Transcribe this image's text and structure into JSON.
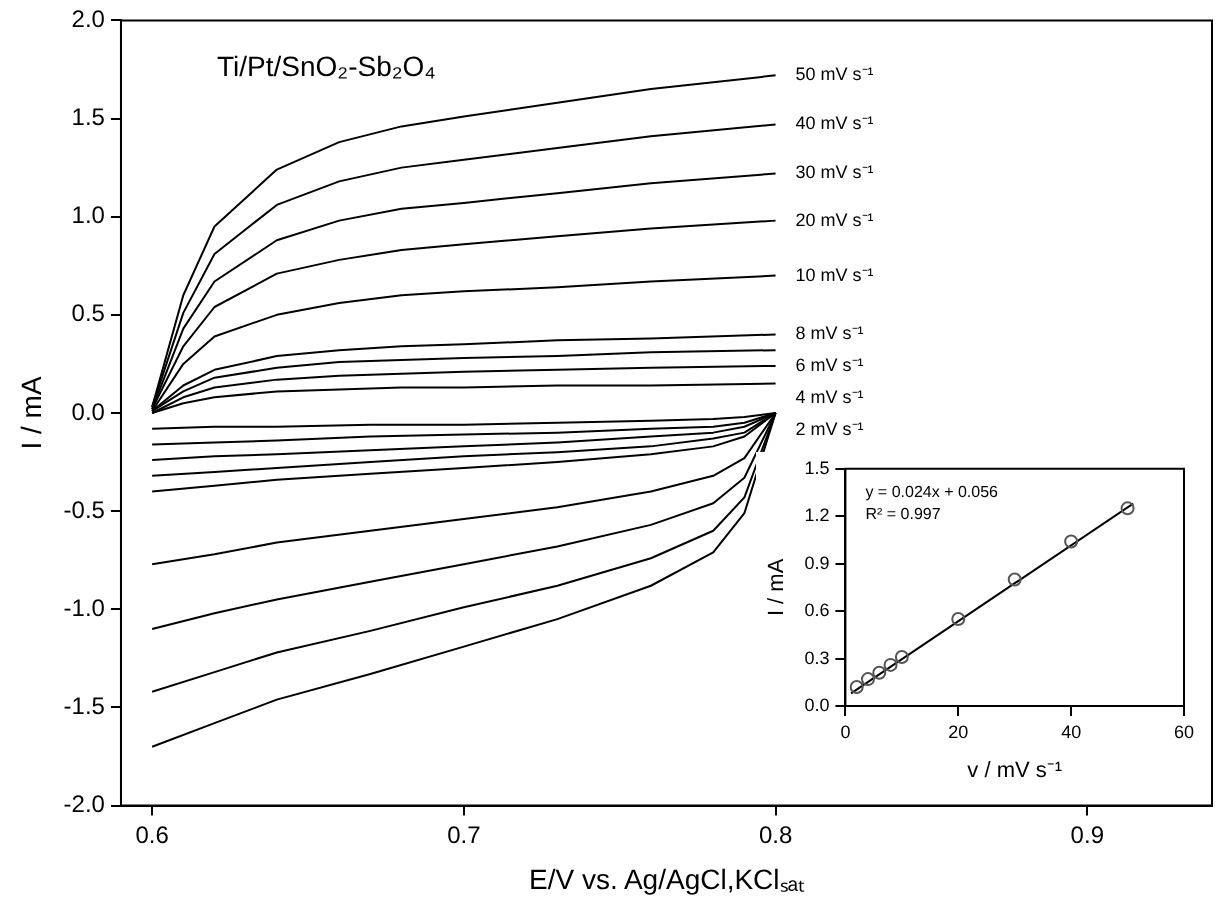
{
  "chart_data": [
    {
      "type": "line",
      "title": "Ti/Pt/SnO₂-Sb₂O₄",
      "xlabel": "E/V vs. Ag/AgCl,KClₛₐₜ",
      "ylabel": "I / mA",
      "xlim": [
        0.59,
        0.94
      ],
      "xticks": [
        0.6,
        0.7,
        0.8,
        0.9
      ],
      "ylim": [
        -2,
        2
      ],
      "yticks": [
        {
          "value": -2,
          "label": "-2.0"
        },
        -1.5,
        {
          "value": -1,
          "label": "-1.0"
        },
        -0.5,
        {
          "value": 0,
          "label": "0.0"
        },
        0.5,
        {
          "value": 1,
          "label": "1.0"
        },
        1.5,
        {
          "value": 2,
          "label": "2.0"
        }
      ],
      "grid": false,
      "legend": false,
      "marker": "none",
      "series": [
        {
          "name": "50 mV s⁻¹",
          "color": "#000000",
          "x": [
            0.6,
            0.61,
            0.62,
            0.64,
            0.66,
            0.68,
            0.7,
            0.73,
            0.76,
            0.8
          ],
          "values": [
            0.03,
            0.6,
            0.95,
            1.24,
            1.38,
            1.46,
            1.51,
            1.58,
            1.65,
            1.72
          ]
        },
        {
          "color": "#000000",
          "x": [
            0.8,
            0.79,
            0.78,
            0.76,
            0.73,
            0.7,
            0.67,
            0.64,
            0.62,
            0.6
          ],
          "values": [
            0.0,
            -0.51,
            -0.71,
            -0.88,
            -1.05,
            -1.19,
            -1.33,
            -1.46,
            -1.58,
            -1.7
          ]
        },
        {
          "name": "40 mV s⁻¹",
          "color": "#000000",
          "x": [
            0.6,
            0.61,
            0.62,
            0.64,
            0.66,
            0.68,
            0.7,
            0.73,
            0.76,
            0.8
          ],
          "values": [
            0.03,
            0.51,
            0.81,
            1.06,
            1.18,
            1.25,
            1.29,
            1.35,
            1.41,
            1.47
          ]
        },
        {
          "color": "#000000",
          "x": [
            0.8,
            0.79,
            0.78,
            0.76,
            0.73,
            0.7,
            0.67,
            0.64,
            0.62,
            0.6
          ],
          "values": [
            0.0,
            -0.43,
            -0.6,
            -0.74,
            -0.88,
            -0.99,
            -1.11,
            -1.22,
            -1.32,
            -1.42
          ]
        },
        {
          "name": "30 mV s⁻¹",
          "color": "#000000",
          "x": [
            0.6,
            0.61,
            0.62,
            0.64,
            0.66,
            0.68,
            0.7,
            0.73,
            0.76,
            0.8
          ],
          "values": [
            0.02,
            0.43,
            0.67,
            0.88,
            0.98,
            1.04,
            1.07,
            1.12,
            1.17,
            1.22
          ]
        },
        {
          "color": "#000000",
          "x": [
            0.8,
            0.79,
            0.78,
            0.76,
            0.73,
            0.7,
            0.67,
            0.64,
            0.62,
            0.6
          ],
          "values": [
            0.0,
            -0.33,
            -0.46,
            -0.57,
            -0.68,
            -0.77,
            -0.86,
            -0.95,
            -1.02,
            -1.1
          ]
        },
        {
          "name": "20 mV s⁻¹",
          "color": "#000000",
          "x": [
            0.6,
            0.61,
            0.62,
            0.64,
            0.66,
            0.68,
            0.7,
            0.73,
            0.76,
            0.8
          ],
          "values": [
            0.02,
            0.34,
            0.54,
            0.71,
            0.78,
            0.83,
            0.86,
            0.9,
            0.94,
            0.98
          ]
        },
        {
          "color": "#000000",
          "x": [
            0.8,
            0.79,
            0.78,
            0.76,
            0.73,
            0.7,
            0.67,
            0.64,
            0.62,
            0.6
          ],
          "values": [
            0.0,
            -0.23,
            -0.32,
            -0.4,
            -0.48,
            -0.54,
            -0.6,
            -0.66,
            -0.72,
            -0.77
          ]
        },
        {
          "name": "10 mV s⁻¹",
          "color": "#000000",
          "x": [
            0.6,
            0.61,
            0.62,
            0.64,
            0.66,
            0.68,
            0.7,
            0.73,
            0.76,
            0.8
          ],
          "values": [
            0.01,
            0.25,
            0.39,
            0.5,
            0.56,
            0.6,
            0.62,
            0.64,
            0.67,
            0.7
          ]
        },
        {
          "color": "#000000",
          "x": [
            0.8,
            0.79,
            0.78,
            0.76,
            0.73,
            0.7,
            0.67,
            0.64,
            0.62,
            0.6
          ],
          "values": [
            0.0,
            -0.12,
            -0.17,
            -0.21,
            -0.25,
            -0.28,
            -0.31,
            -0.34,
            -0.37,
            -0.4
          ]
        },
        {
          "name": "8 mV s⁻¹",
          "color": "#000000",
          "x": [
            0.6,
            0.61,
            0.62,
            0.64,
            0.66,
            0.68,
            0.7,
            0.73,
            0.76,
            0.8
          ],
          "values": [
            0.01,
            0.14,
            0.22,
            0.29,
            0.32,
            0.34,
            0.35,
            0.37,
            0.38,
            0.4
          ]
        },
        {
          "color": "#000000",
          "x": [
            0.8,
            0.79,
            0.78,
            0.76,
            0.73,
            0.7,
            0.67,
            0.64,
            0.62,
            0.6
          ],
          "values": [
            0.0,
            -0.1,
            -0.13,
            -0.17,
            -0.2,
            -0.22,
            -0.25,
            -0.28,
            -0.3,
            -0.32
          ]
        },
        {
          "name": "6 mV s⁻¹",
          "color": "#000000",
          "x": [
            0.6,
            0.61,
            0.62,
            0.64,
            0.66,
            0.68,
            0.7,
            0.73,
            0.76,
            0.8
          ],
          "values": [
            0.01,
            0.11,
            0.18,
            0.23,
            0.26,
            0.27,
            0.28,
            0.29,
            0.31,
            0.32
          ]
        },
        {
          "color": "#000000",
          "x": [
            0.8,
            0.79,
            0.78,
            0.76,
            0.73,
            0.7,
            0.67,
            0.64,
            0.62,
            0.6
          ],
          "values": [
            0.0,
            -0.07,
            -0.1,
            -0.12,
            -0.15,
            -0.17,
            -0.19,
            -0.21,
            -0.22,
            -0.24
          ]
        },
        {
          "name": "4 mV s⁻¹",
          "color": "#000000",
          "x": [
            0.6,
            0.61,
            0.62,
            0.64,
            0.66,
            0.68,
            0.7,
            0.73,
            0.76,
            0.8
          ],
          "values": [
            0.0,
            0.08,
            0.13,
            0.17,
            0.19,
            0.2,
            0.21,
            0.22,
            0.23,
            0.24
          ]
        },
        {
          "color": "#000000",
          "x": [
            0.8,
            0.79,
            0.78,
            0.76,
            0.73,
            0.7,
            0.67,
            0.64,
            0.62,
            0.6
          ],
          "values": [
            0.0,
            -0.05,
            -0.07,
            -0.08,
            -0.1,
            -0.11,
            -0.12,
            -0.14,
            -0.15,
            -0.16
          ]
        },
        {
          "name": "2 mV s⁻¹",
          "color": "#000000",
          "x": [
            0.6,
            0.61,
            0.62,
            0.64,
            0.66,
            0.68,
            0.7,
            0.73,
            0.76,
            0.8
          ],
          "values": [
            0.0,
            0.05,
            0.08,
            0.11,
            0.12,
            0.13,
            0.13,
            0.14,
            0.14,
            0.15
          ]
        },
        {
          "color": "#000000",
          "x": [
            0.8,
            0.79,
            0.78,
            0.76,
            0.73,
            0.7,
            0.67,
            0.64,
            0.62,
            0.6
          ],
          "values": [
            0.0,
            -0.02,
            -0.03,
            -0.04,
            -0.05,
            -0.06,
            -0.06,
            -0.07,
            -0.07,
            -0.08
          ]
        }
      ]
    },
    {
      "type": "scatter",
      "xlabel": "v / mV s⁻¹",
      "ylabel": "I / mA",
      "xlim": [
        0,
        60
      ],
      "xticks": [
        0,
        20,
        40,
        60
      ],
      "ylim": [
        0,
        1.5
      ],
      "yticks": [
        {
          "value": 0,
          "label": "0.0"
        },
        0.3,
        0.6,
        0.9,
        1.2,
        1.5
      ],
      "grid": false,
      "legend": false,
      "annotations": [
        "y = 0.024x + 0.056",
        "R² = 0.997"
      ],
      "series": [
        {
          "marker": "circle",
          "color": "#555555",
          "x": [
            2,
            4,
            6,
            8,
            10,
            20,
            30,
            40,
            50
          ],
          "values": [
            0.12,
            0.17,
            0.21,
            0.26,
            0.31,
            0.55,
            0.8,
            1.04,
            1.25
          ]
        },
        {
          "type": "line",
          "marker": "none",
          "color": "#000000",
          "x": [
            1,
            51
          ],
          "values": [
            0.08,
            1.28
          ]
        }
      ]
    }
  ]
}
